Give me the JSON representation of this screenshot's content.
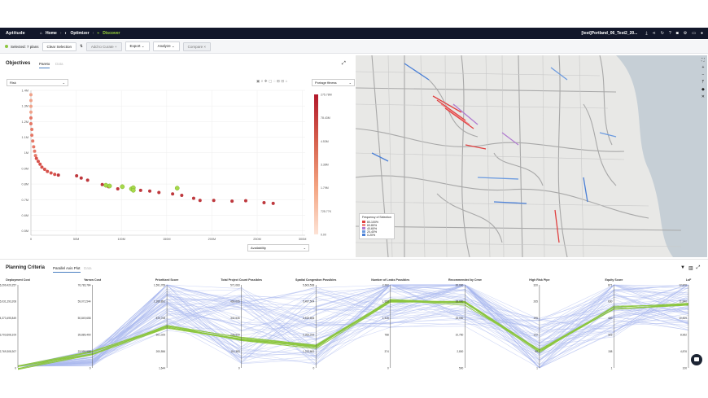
{
  "app": {
    "brand": "Aptitude"
  },
  "nav": {
    "home": "Home",
    "optimizer": "Optimizer",
    "discover": "Discover",
    "project": "[test]Portland_06_Test2_20..."
  },
  "toolbar": {
    "selected": "Selected: 7 plans",
    "clear": "Clear Selection",
    "add_to_curate": "Add to Curate",
    "export": "Export",
    "analyze": "Analyze",
    "compare": "Compare"
  },
  "objectives": {
    "title": "Objectives",
    "tab_pareto": "Pareto",
    "tab_data": "Data",
    "y_select": "Risk",
    "x_select": "Availability",
    "color_select": "Portage fitness",
    "y_ticks": [
      "1.4M",
      "1.3M",
      "1.2M",
      "1.1M",
      "1M",
      "0.9M",
      "0.8M",
      "0.7M",
      "0.6M",
      "0.5M"
    ],
    "x_ticks": [
      "0",
      "50M",
      "100M",
      "150M",
      "200M",
      "250M",
      "300M"
    ],
    "color_ticks": [
      "275.78M",
      "78.43M",
      "4.53M",
      "3.38M",
      "1.79M",
      "725.77K",
      "0.00"
    ]
  },
  "map_legend": {
    "title": "Frequency of Selection",
    "items": [
      "80-100%",
      "60-80%",
      "40-60%",
      "20-40%",
      "0-20%"
    ],
    "colors": [
      "#e04040",
      "#f08a8a",
      "#b07ad0",
      "#6c9be0",
      "#4a7fd6"
    ]
  },
  "planning": {
    "title": "Planning Criteria",
    "tab_parallel": "Parallel Axis Plot",
    "tab_data": "Data",
    "axes": [
      {
        "name": "Deployment Cost",
        "ticks": [
          "6,299,420,257",
          "5,031,293,208",
          "4,373,495,849",
          "3,703,608,109",
          "2,769,308,307",
          "0"
        ]
      },
      {
        "name": "Yarrow Cost",
        "ticks": [
          "76,783,784",
          "59,072,544",
          "50,849,658",
          "39,889,490",
          "23,999,958",
          "0"
        ]
      },
      {
        "name": "Prioritized Score",
        "ticks": [
          "1,591,769",
          "1,395,891",
          "870,708",
          "601,029",
          "200,556",
          "1,644"
        ]
      },
      {
        "name": "Total Project Count Possibles",
        "ticks": [
          "571,083",
          "469,006",
          "342,535",
          "228,909",
          "114,383",
          "0"
        ]
      },
      {
        "name": "Spatial Congestion Possibles",
        "ticks": [
          "5,603,538",
          "5,497,504",
          "3,519,806",
          "2,263,222",
          "1,223,861",
          "0"
        ]
      },
      {
        "name": "Number of Leaks Possibles",
        "ticks": [
          "2,262",
          "1,953",
          "1,315",
          "788",
          "374",
          "0"
        ]
      },
      {
        "name": "Recommended by Crew",
        "ticks": [
          "20,000",
          "18,000",
          "15,000",
          "10,760",
          "2,800",
          "500"
        ]
      },
      {
        "name": "High Risk Pipe",
        "ticks": [
          "320",
          "265",
          "195",
          "122",
          "60",
          "1"
        ]
      },
      {
        "name": "Equity Score",
        "ticks": [
          "871",
          "630",
          "420",
          "329",
          "158",
          "1"
        ]
      },
      {
        "name": "LoF",
        "ticks": [
          "12,870",
          "11,840",
          "10,829",
          "8,962",
          "4,876",
          "100"
        ]
      }
    ]
  },
  "chart_data": [
    {
      "type": "scatter",
      "title": "Objectives",
      "xlabel": "Availability",
      "ylabel": "Risk",
      "xlim": [
        0,
        300000000
      ],
      "ylim": [
        450000,
        1450000
      ],
      "points": [
        [
          0,
          1420000
        ],
        [
          0,
          1380000
        ],
        [
          0,
          1340000
        ],
        [
          0,
          1300000
        ],
        [
          0,
          1260000
        ],
        [
          0,
          1220000
        ],
        [
          1000000,
          1180000
        ],
        [
          1000000,
          1140000
        ],
        [
          2000000,
          1100000
        ],
        [
          3000000,
          1060000
        ],
        [
          4000000,
          1030000
        ],
        [
          5000000,
          1000000
        ],
        [
          6000000,
          980000
        ],
        [
          8000000,
          960000
        ],
        [
          10000000,
          940000
        ],
        [
          12000000,
          920000
        ],
        [
          15000000,
          905000
        ],
        [
          18000000,
          890000
        ],
        [
          22000000,
          880000
        ],
        [
          26000000,
          870000
        ],
        [
          30000000,
          865000
        ],
        [
          50000000,
          860000
        ],
        [
          55000000,
          845000
        ],
        [
          62000000,
          830000
        ],
        [
          78000000,
          800000
        ],
        [
          85000000,
          785000
        ],
        [
          95000000,
          770000
        ],
        [
          112000000,
          775000
        ],
        [
          120000000,
          760000
        ],
        [
          130000000,
          755000
        ],
        [
          140000000,
          745000
        ],
        [
          155000000,
          735000
        ],
        [
          165000000,
          725000
        ],
        [
          178000000,
          705000
        ],
        [
          185000000,
          690000
        ],
        [
          200000000,
          690000
        ],
        [
          220000000,
          685000
        ],
        [
          235000000,
          688000
        ],
        [
          255000000,
          675000
        ],
        [
          265000000,
          670000
        ]
      ],
      "selected_points": [
        [
          82000000,
          795000
        ],
        [
          86000000,
          790000
        ],
        [
          100000000,
          785000
        ],
        [
          110000000,
          770000
        ],
        [
          112000000,
          778000
        ],
        [
          160000000,
          775000
        ],
        [
          112000000,
          760000
        ]
      ],
      "color_scale": {
        "min": "0.00",
        "max": "275.78M",
        "colors": [
          "#fde3d6",
          "#f4a582",
          "#d6604d",
          "#b2182b"
        ]
      }
    },
    {
      "type": "line",
      "subtype": "parallel-coordinates",
      "title": "Parallel Axis Plot",
      "highlight_color": "#8cc63f",
      "base_color": "#a9b8ee"
    }
  ]
}
